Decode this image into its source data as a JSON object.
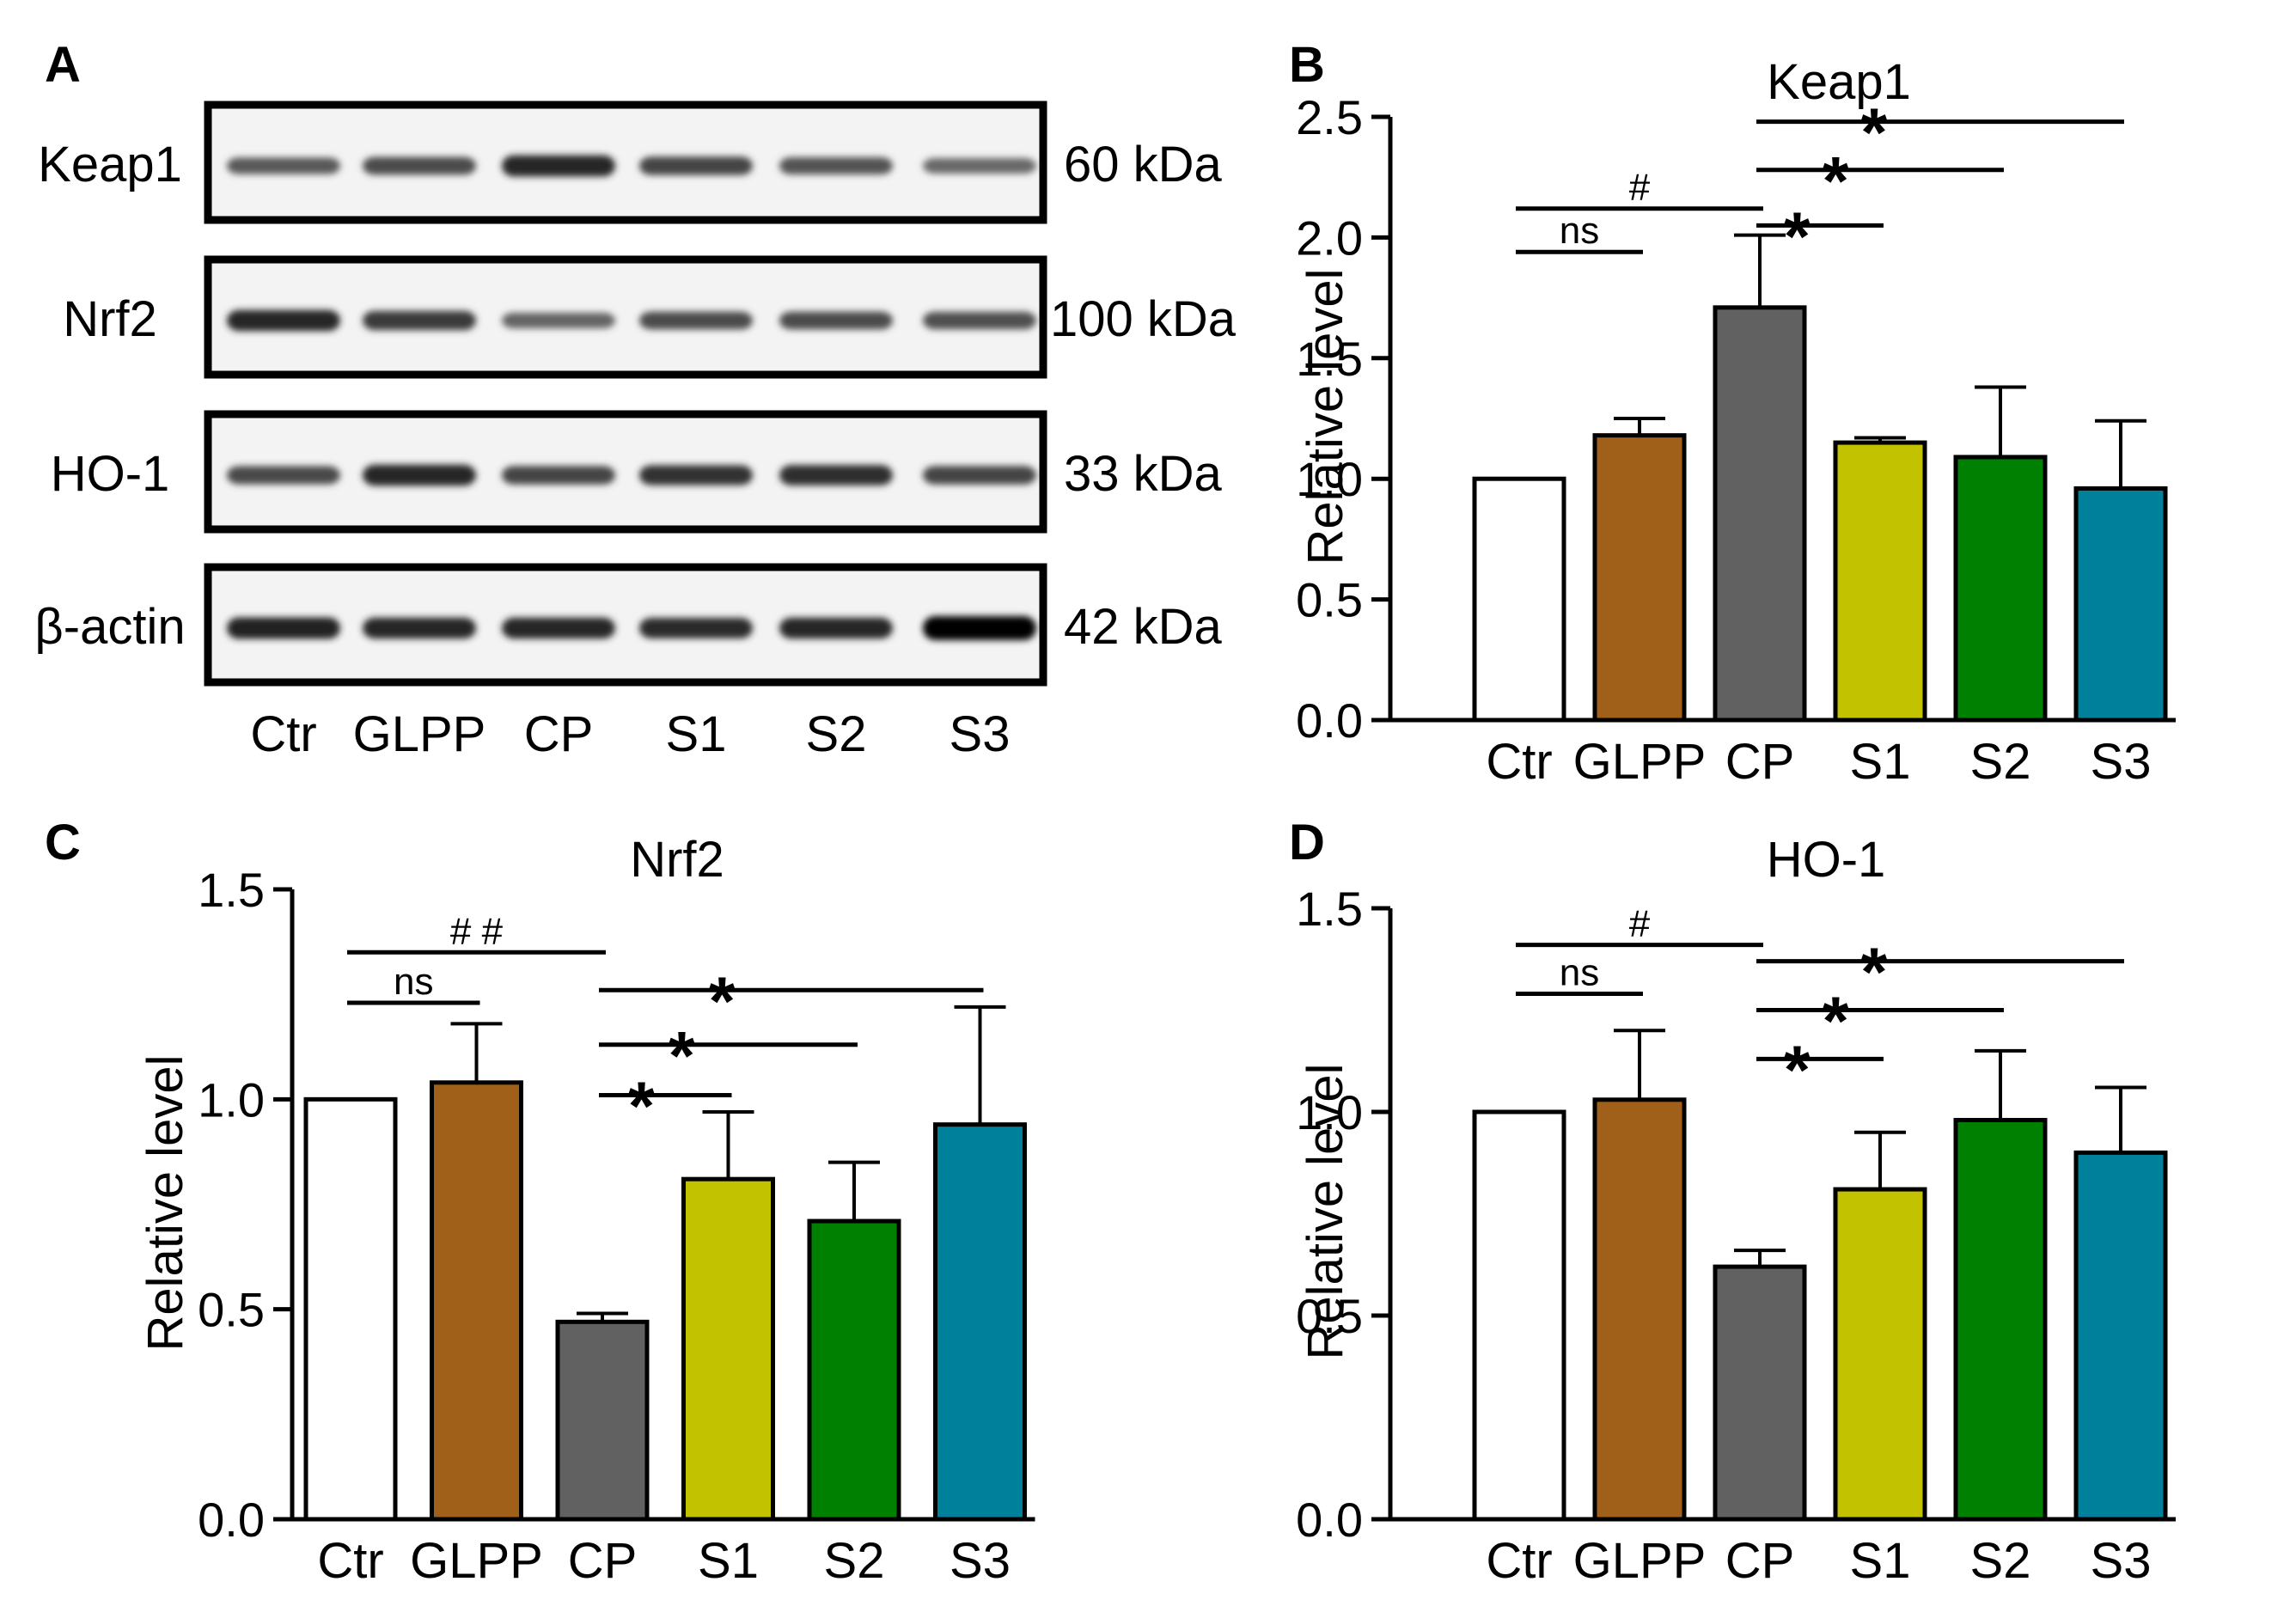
{
  "figure": {
    "panel_labels": [
      "A",
      "B",
      "C",
      "D"
    ]
  },
  "blot": {
    "proteins": [
      "Keap1",
      "Nrf2",
      "HO-1",
      "β-actin"
    ],
    "sizes": [
      "60 kDa",
      "100 kDa",
      "33 kDa",
      "42 kDa"
    ],
    "lanes": [
      "Ctr",
      "GLPP",
      "CP",
      "S1",
      "S2",
      "S3"
    ],
    "intensity": [
      [
        0.52,
        0.6,
        0.82,
        0.64,
        0.56,
        0.44
      ],
      [
        0.8,
        0.7,
        0.46,
        0.6,
        0.6,
        0.58
      ],
      [
        0.62,
        0.8,
        0.64,
        0.74,
        0.76,
        0.64
      ],
      [
        0.84,
        0.8,
        0.8,
        0.78,
        0.8,
        1.0
      ]
    ]
  },
  "colors": {
    "Ctr": "#ffffff",
    "GLPP": "#a0601a",
    "CP": "#616161",
    "S1": "#c2c200",
    "S2": "#008000",
    "S3": "#00809a"
  },
  "chart_data": [
    {
      "panel": "B",
      "type": "bar",
      "title": "Keap1",
      "ylabel": "Relative level",
      "xlabel": "",
      "ylim": [
        0,
        2.5
      ],
      "yticks": [
        "0.0",
        "0.5",
        "1.0",
        "1.5",
        "2.0",
        "2.5"
      ],
      "categories": [
        "Ctr",
        "GLPP",
        "CP",
        "S1",
        "S2",
        "S3"
      ],
      "values": [
        1.0,
        1.18,
        1.71,
        1.15,
        1.09,
        0.96
      ],
      "errors": [
        0,
        0.07,
        0.3,
        0.02,
        0.29,
        0.28
      ],
      "annotations": [
        {
          "from": 0,
          "to": 1,
          "level": 1.94,
          "text": "ns"
        },
        {
          "from": 0,
          "to": 2,
          "level": 2.12,
          "text": "#"
        },
        {
          "from": 2,
          "to": 3,
          "level": 2.05,
          "text": "*"
        },
        {
          "from": 2,
          "to": 4,
          "level": 2.28,
          "text": "*"
        },
        {
          "from": 2,
          "to": 5,
          "level": 2.48,
          "text": "*"
        }
      ]
    },
    {
      "panel": "C",
      "type": "bar",
      "title": "Nrf2",
      "ylabel": "Relative level",
      "xlabel": "",
      "ylim": [
        0,
        1.5
      ],
      "yticks": [
        "0.0",
        "0.5",
        "1.0",
        "1.5"
      ],
      "categories": [
        "Ctr",
        "GLPP",
        "CP",
        "S1",
        "S2",
        "S3"
      ],
      "values": [
        1.0,
        1.04,
        0.47,
        0.81,
        0.71,
        0.94
      ],
      "errors": [
        0,
        0.14,
        0.02,
        0.16,
        0.14,
        0.28
      ],
      "annotations": [
        {
          "from": 0,
          "to": 1,
          "level": 1.23,
          "text": "ns"
        },
        {
          "from": 0,
          "to": 2,
          "level": 1.35,
          "text": "# #"
        },
        {
          "from": 2,
          "to": 3,
          "level": 1.01,
          "text": "*"
        },
        {
          "from": 2,
          "to": 4,
          "level": 1.13,
          "text": "*"
        },
        {
          "from": 2,
          "to": 5,
          "level": 1.26,
          "text": "*"
        }
      ]
    },
    {
      "panel": "D",
      "type": "bar",
      "title": "HO-1",
      "ylabel": "Relative level",
      "xlabel": "",
      "ylim": [
        0,
        1.5
      ],
      "yticks": [
        "0.0",
        "0.5",
        "1.0",
        "1.5"
      ],
      "categories": [
        "Ctr",
        "GLPP",
        "CP",
        "S1",
        "S2",
        "S3"
      ],
      "values": [
        1.0,
        1.03,
        0.62,
        0.81,
        0.98,
        0.9
      ],
      "errors": [
        0,
        0.17,
        0.04,
        0.14,
        0.17,
        0.16
      ],
      "annotations": [
        {
          "from": 0,
          "to": 1,
          "level": 1.29,
          "text": "ns"
        },
        {
          "from": 0,
          "to": 2,
          "level": 1.41,
          "text": "#"
        },
        {
          "from": 2,
          "to": 3,
          "level": 1.13,
          "text": "*"
        },
        {
          "from": 2,
          "to": 4,
          "level": 1.25,
          "text": "*"
        },
        {
          "from": 2,
          "to": 5,
          "level": 1.37,
          "text": "*"
        }
      ]
    }
  ]
}
